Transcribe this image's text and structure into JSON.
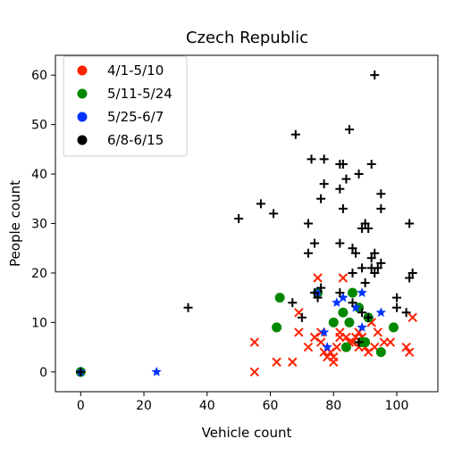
{
  "chart_data": {
    "type": "scatter",
    "title": "Czech Republic",
    "xlabel": "Vehicle count",
    "ylabel": "People count",
    "xlim": [
      -8,
      113
    ],
    "ylim": [
      -4,
      64
    ],
    "xticks": [
      0,
      20,
      40,
      60,
      80,
      100
    ],
    "yticks": [
      0,
      10,
      20,
      30,
      40,
      50,
      60
    ],
    "grid": false,
    "legend_position": "top-left",
    "series": [
      {
        "name": "4/1-5/10",
        "color": "#ff2200",
        "marker": "x",
        "legend_marker": "circle",
        "points": [
          [
            55,
            6
          ],
          [
            55,
            0
          ],
          [
            62,
            2
          ],
          [
            67,
            2
          ],
          [
            69,
            8
          ],
          [
            69,
            12
          ],
          [
            72,
            5
          ],
          [
            74,
            7
          ],
          [
            75,
            19
          ],
          [
            76,
            8
          ],
          [
            76,
            6
          ],
          [
            77,
            4
          ],
          [
            78,
            3
          ],
          [
            79,
            4
          ],
          [
            80,
            3
          ],
          [
            80,
            2
          ],
          [
            81,
            5
          ],
          [
            82,
            8
          ],
          [
            82,
            7
          ],
          [
            83,
            19
          ],
          [
            84,
            7
          ],
          [
            85,
            6
          ],
          [
            86,
            6
          ],
          [
            87,
            7
          ],
          [
            88,
            5
          ],
          [
            88,
            8
          ],
          [
            89,
            7
          ],
          [
            90,
            5
          ],
          [
            91,
            4
          ],
          [
            92,
            10
          ],
          [
            93,
            5
          ],
          [
            94,
            8
          ],
          [
            96,
            6
          ],
          [
            98,
            6
          ],
          [
            103,
            5
          ],
          [
            104,
            4
          ],
          [
            105,
            11
          ]
        ]
      },
      {
        "name": "5/11-5/24",
        "color": "#008800",
        "marker": "circle",
        "legend_marker": "circle",
        "points": [
          [
            0,
            0
          ],
          [
            62,
            9
          ],
          [
            63,
            15
          ],
          [
            75,
            16
          ],
          [
            80,
            10
          ],
          [
            83,
            12
          ],
          [
            84,
            5
          ],
          [
            85,
            10
          ],
          [
            86,
            16
          ],
          [
            88,
            13
          ],
          [
            89,
            6
          ],
          [
            90,
            6
          ],
          [
            91,
            11
          ],
          [
            95,
            4
          ],
          [
            99,
            9
          ]
        ]
      },
      {
        "name": "5/25-6/7",
        "color": "#0033ff",
        "marker": "star",
        "legend_marker": "circle",
        "points": [
          [
            0,
            0
          ],
          [
            24,
            0
          ],
          [
            75,
            16
          ],
          [
            77,
            8
          ],
          [
            78,
            5
          ],
          [
            81,
            14
          ],
          [
            83,
            15
          ],
          [
            87,
            13
          ],
          [
            89,
            16
          ],
          [
            89,
            9
          ],
          [
            95,
            12
          ]
        ]
      },
      {
        "name": "6/8-6/15",
        "color": "#000000",
        "marker": "plus",
        "legend_marker": "circle",
        "points": [
          [
            0,
            0
          ],
          [
            34,
            13
          ],
          [
            50,
            31
          ],
          [
            57,
            34
          ],
          [
            61,
            32
          ],
          [
            67,
            14
          ],
          [
            68,
            48
          ],
          [
            70,
            11
          ],
          [
            72,
            24
          ],
          [
            72,
            30
          ],
          [
            73,
            43
          ],
          [
            74,
            26
          ],
          [
            74,
            16
          ],
          [
            75,
            15
          ],
          [
            76,
            17
          ],
          [
            76,
            35
          ],
          [
            77,
            38
          ],
          [
            77,
            43
          ],
          [
            82,
            42
          ],
          [
            82,
            37
          ],
          [
            82,
            26
          ],
          [
            82,
            16
          ],
          [
            83,
            42
          ],
          [
            83,
            33
          ],
          [
            84,
            39
          ],
          [
            85,
            49
          ],
          [
            86,
            25
          ],
          [
            86,
            20
          ],
          [
            86,
            14
          ],
          [
            87,
            24
          ],
          [
            88,
            40
          ],
          [
            88,
            6
          ],
          [
            89,
            29
          ],
          [
            89,
            21
          ],
          [
            89,
            12
          ],
          [
            90,
            30
          ],
          [
            90,
            18
          ],
          [
            91,
            29
          ],
          [
            91,
            11
          ],
          [
            92,
            42
          ],
          [
            92,
            23
          ],
          [
            92,
            21
          ],
          [
            93,
            60
          ],
          [
            93,
            24
          ],
          [
            93,
            20
          ],
          [
            94,
            21
          ],
          [
            95,
            36
          ],
          [
            95,
            33
          ],
          [
            95,
            22
          ],
          [
            100,
            15
          ],
          [
            100,
            13
          ],
          [
            103,
            12
          ],
          [
            104,
            19
          ],
          [
            104,
            30
          ],
          [
            105,
            20
          ]
        ]
      }
    ]
  }
}
